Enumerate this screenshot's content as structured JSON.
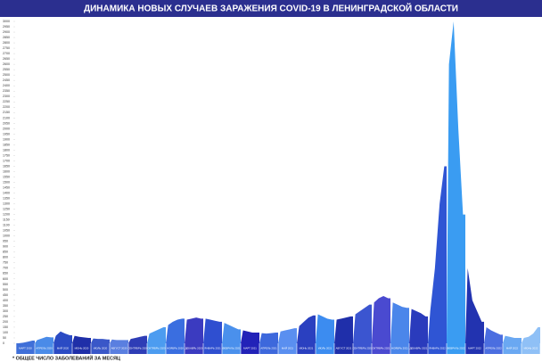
{
  "chart_data": {
    "type": "area",
    "title": "ДИНАМИКА НОВЫХ СЛУЧАЕВ ЗАРАЖЕНИЯ COVID-19 В ЛЕНИНГРАДСКОЙ ОБЛАСТИ",
    "footnote": "* ОБЩЕЕ ЧИСЛО ЗАБОЛЕВАНИЙ ЗА МЕСЯЦ",
    "ylim": [
      0,
      3000
    ],
    "yticks": [
      0,
      50,
      100,
      150,
      200,
      250,
      300,
      350,
      400,
      450,
      500,
      550,
      600,
      650,
      700,
      750,
      800,
      850,
      900,
      950,
      1000,
      1050,
      1100,
      1150,
      1200,
      1250,
      1300,
      1350,
      1400,
      1450,
      1500,
      1550,
      1600,
      1650,
      1700,
      1750,
      1800,
      1850,
      1900,
      1950,
      2000,
      2050,
      2100,
      2150,
      2200,
      2250,
      2300,
      2350,
      2400,
      2450,
      2500,
      2550,
      2600,
      2650,
      2700,
      2750,
      2800,
      2850,
      2900,
      2950,
      3000
    ],
    "segments": [
      {
        "name": "МАРТ 2020",
        "color": "#3f6fd8",
        "values": [
          0,
          5,
          15,
          25
        ]
      },
      {
        "name": "АПРЕЛЬ 2020",
        "color": "#4a8be8",
        "values": [
          30,
          45,
          60,
          55
        ]
      },
      {
        "name": "МАЙ 2020",
        "color": "#2b4bc4",
        "values": [
          70,
          110,
          90,
          75
        ]
      },
      {
        "name": "ИЮНЬ 2020",
        "color": "#1f2fa8",
        "values": [
          70,
          60,
          55,
          50
        ]
      },
      {
        "name": "ИЮЛЬ 2020",
        "color": "#3a57c8",
        "values": [
          45,
          40,
          40,
          35
        ]
      },
      {
        "name": "АВГУСТ 2020",
        "color": "#5a7fe0",
        "values": [
          35,
          30,
          30,
          30
        ]
      },
      {
        "name": "СЕНТЯБРЬ 2020",
        "color": "#2e3db6",
        "values": [
          40,
          50,
          60,
          70
        ]
      },
      {
        "name": "ОКТЯБРЬ 2020",
        "color": "#4c9cf0",
        "values": [
          90,
          110,
          130,
          150
        ]
      },
      {
        "name": "НОЯБРЬ 2020",
        "color": "#3a6ee0",
        "values": [
          170,
          200,
          220,
          230
        ]
      },
      {
        "name": "ДЕКАБРЬ 2020",
        "color": "#3b3bc0",
        "values": [
          220,
          230,
          240,
          230
        ]
      },
      {
        "name": "ЯНВАРЬ 2021",
        "color": "#2f4fd0",
        "values": [
          230,
          220,
          210,
          200
        ]
      },
      {
        "name": "ФЕВРАЛЬ 2021",
        "color": "#4a90ec",
        "values": [
          190,
          170,
          150,
          130
        ]
      },
      {
        "name": "МАРТ 2021",
        "color": "#2222b8",
        "values": [
          120,
          110,
          100,
          100
        ]
      },
      {
        "name": "АПРЕЛЬ 2021",
        "color": "#3d68dc",
        "values": [
          95,
          90,
          95,
          100
        ]
      },
      {
        "name": "МАЙ 2021",
        "color": "#5a8ff0",
        "values": [
          110,
          120,
          130,
          140
        ]
      },
      {
        "name": "ИЮНЬ 2021",
        "color": "#2a40c0",
        "values": [
          160,
          200,
          240,
          260
        ]
      },
      {
        "name": "ИЮЛЬ 2021",
        "color": "#3c8cf0",
        "values": [
          270,
          250,
          230,
          220
        ]
      },
      {
        "name": "АВГУСТ 2021",
        "color": "#1f2faa",
        "values": [
          220,
          230,
          240,
          250
        ]
      },
      {
        "name": "СЕНТЯБРЬ 2021",
        "color": "#3b55d0",
        "values": [
          270,
          300,
          330,
          360
        ]
      },
      {
        "name": "ОКТЯБРЬ 2021",
        "color": "#4a4ad0",
        "values": [
          380,
          420,
          440,
          420
        ]
      },
      {
        "name": "НОЯБРЬ 2021",
        "color": "#4b86ea",
        "values": [
          380,
          360,
          340,
          330
        ]
      },
      {
        "name": "ДЕКАБРЬ 2021",
        "color": "#2a3bbc",
        "values": [
          320,
          300,
          280,
          250
        ]
      },
      {
        "name": "ЯНВАРЬ 2022",
        "color": "#2f55d4",
        "values": [
          300,
          700,
          1300,
          1650
        ]
      },
      {
        "name": "ФЕВРАЛЬ 2022",
        "color": "#3a9cf2",
        "values": [
          2600,
          3000,
          2000,
          1200
        ]
      },
      {
        "name": "МАРТ 2022",
        "color": "#2233b0",
        "values": [
          700,
          400,
          300,
          200
        ]
      },
      {
        "name": "АПРЕЛЬ 2022",
        "color": "#4b6ee0",
        "values": [
          150,
          120,
          100,
          80
        ]
      },
      {
        "name": "МАЙ 2022",
        "color": "#6aa8f2",
        "values": [
          70,
          60,
          50,
          50
        ]
      },
      {
        "name": "ИЮНЬ 2022",
        "color": "#8fc0f6",
        "values": [
          50,
          60,
          90,
          150
        ]
      }
    ]
  }
}
